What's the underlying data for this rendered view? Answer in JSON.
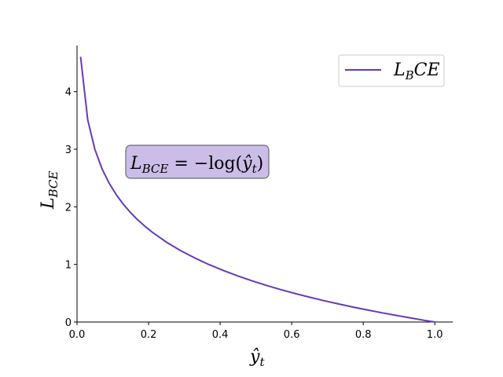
{
  "chart_data": {
    "type": "line",
    "title": "",
    "xlabel": "ŷ",
    "xlabel_sub": "t",
    "ylabel": "L",
    "ylabel_sub": "BCE",
    "xlim": [
      0.0,
      1.05
    ],
    "ylim": [
      0.0,
      4.8
    ],
    "xticks": [
      0.0,
      0.2,
      0.4,
      0.6,
      0.8,
      1.0
    ],
    "xtick_labels": [
      "0.0",
      "0.2",
      "0.4",
      "0.6",
      "0.8",
      "1.0"
    ],
    "yticks": [
      0,
      1,
      2,
      3,
      4
    ],
    "ytick_labels": [
      "0",
      "1",
      "2",
      "3",
      "4"
    ],
    "grid": false,
    "legend_position": "top-right",
    "series": [
      {
        "name": "L_BCE",
        "legend_main": "L",
        "legend_sub": "B",
        "legend_tail": "CE",
        "color": "#673ab7",
        "x": [
          0.01,
          0.03,
          0.05,
          0.07,
          0.09,
          0.11,
          0.13,
          0.15,
          0.17,
          0.19,
          0.21,
          0.25,
          0.29,
          0.33,
          0.37,
          0.41,
          0.45,
          0.49,
          0.53,
          0.57,
          0.61,
          0.65,
          0.69,
          0.73,
          0.77,
          0.81,
          0.85,
          0.89,
          0.93,
          0.97,
          1.0
        ],
        "y": [
          4.605,
          3.507,
          2.996,
          2.659,
          2.408,
          2.207,
          2.04,
          1.897,
          1.772,
          1.661,
          1.561,
          1.386,
          1.238,
          1.109,
          0.994,
          0.892,
          0.799,
          0.713,
          0.635,
          0.562,
          0.494,
          0.431,
          0.371,
          0.315,
          0.261,
          0.211,
          0.163,
          0.117,
          0.073,
          0.03,
          0.0
        ]
      }
    ],
    "annotation": {
      "main": "L",
      "sub": "BCE",
      "rest": " = −log(",
      "hat": "ŷ",
      "hat_sub": "t",
      "close": ")",
      "box_color": "#cbbde8",
      "edge_color": "#6b6b6b"
    }
  }
}
